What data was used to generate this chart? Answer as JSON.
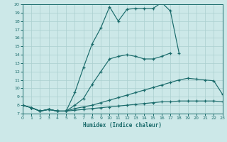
{
  "xlabel": "Humidex (Indice chaleur)",
  "bg_color": "#cce8e8",
  "line_color": "#1a6b6b",
  "grid_color": "#aacfcf",
  "xlim": [
    0,
    23
  ],
  "ylim": [
    7,
    20
  ],
  "xticks": [
    0,
    1,
    2,
    3,
    4,
    5,
    6,
    7,
    8,
    9,
    10,
    11,
    12,
    13,
    14,
    15,
    16,
    17,
    18,
    19,
    20,
    21,
    22,
    23
  ],
  "yticks": [
    7,
    8,
    9,
    10,
    11,
    12,
    13,
    14,
    15,
    16,
    17,
    18,
    19,
    20
  ],
  "lines": [
    {
      "x": [
        0,
        1,
        2,
        3,
        4,
        5,
        6,
        7,
        8,
        9,
        10,
        11,
        12,
        13,
        14,
        15,
        16,
        17,
        18
      ],
      "y": [
        8,
        7.7,
        7.3,
        7.5,
        7.3,
        7.3,
        9.5,
        12.5,
        15.3,
        17.2,
        19.7,
        18.0,
        19.4,
        19.5,
        19.5,
        19.5,
        20.2,
        19.2,
        14.2
      ]
    },
    {
      "x": [
        0,
        1,
        2,
        3,
        4,
        5,
        6,
        7,
        8,
        9,
        10,
        11,
        12,
        13,
        14,
        15,
        16,
        17
      ],
      "y": [
        8,
        7.7,
        7.3,
        7.5,
        7.3,
        7.3,
        8.0,
        8.8,
        10.5,
        12.0,
        13.5,
        13.8,
        14.0,
        13.8,
        13.5,
        13.5,
        13.8,
        14.2
      ]
    },
    {
      "x": [
        0,
        1,
        2,
        3,
        4,
        5,
        6,
        7,
        8,
        9,
        10,
        11,
        12,
        13,
        14,
        15,
        16,
        17,
        18,
        19,
        20,
        21,
        22,
        23
      ],
      "y": [
        8,
        7.7,
        7.3,
        7.5,
        7.3,
        7.3,
        7.6,
        7.8,
        8.0,
        8.3,
        8.6,
        8.9,
        9.2,
        9.5,
        9.8,
        10.1,
        10.4,
        10.7,
        11.0,
        11.2,
        11.1,
        11.0,
        10.9,
        9.3
      ]
    },
    {
      "x": [
        0,
        1,
        2,
        3,
        4,
        5,
        6,
        7,
        8,
        9,
        10,
        11,
        12,
        13,
        14,
        15,
        16,
        17,
        18,
        19,
        20,
        21,
        22,
        23
      ],
      "y": [
        8,
        7.7,
        7.3,
        7.5,
        7.3,
        7.3,
        7.4,
        7.5,
        7.6,
        7.7,
        7.8,
        7.9,
        8.0,
        8.1,
        8.2,
        8.3,
        8.4,
        8.4,
        8.5,
        8.5,
        8.5,
        8.5,
        8.5,
        8.4
      ]
    }
  ]
}
